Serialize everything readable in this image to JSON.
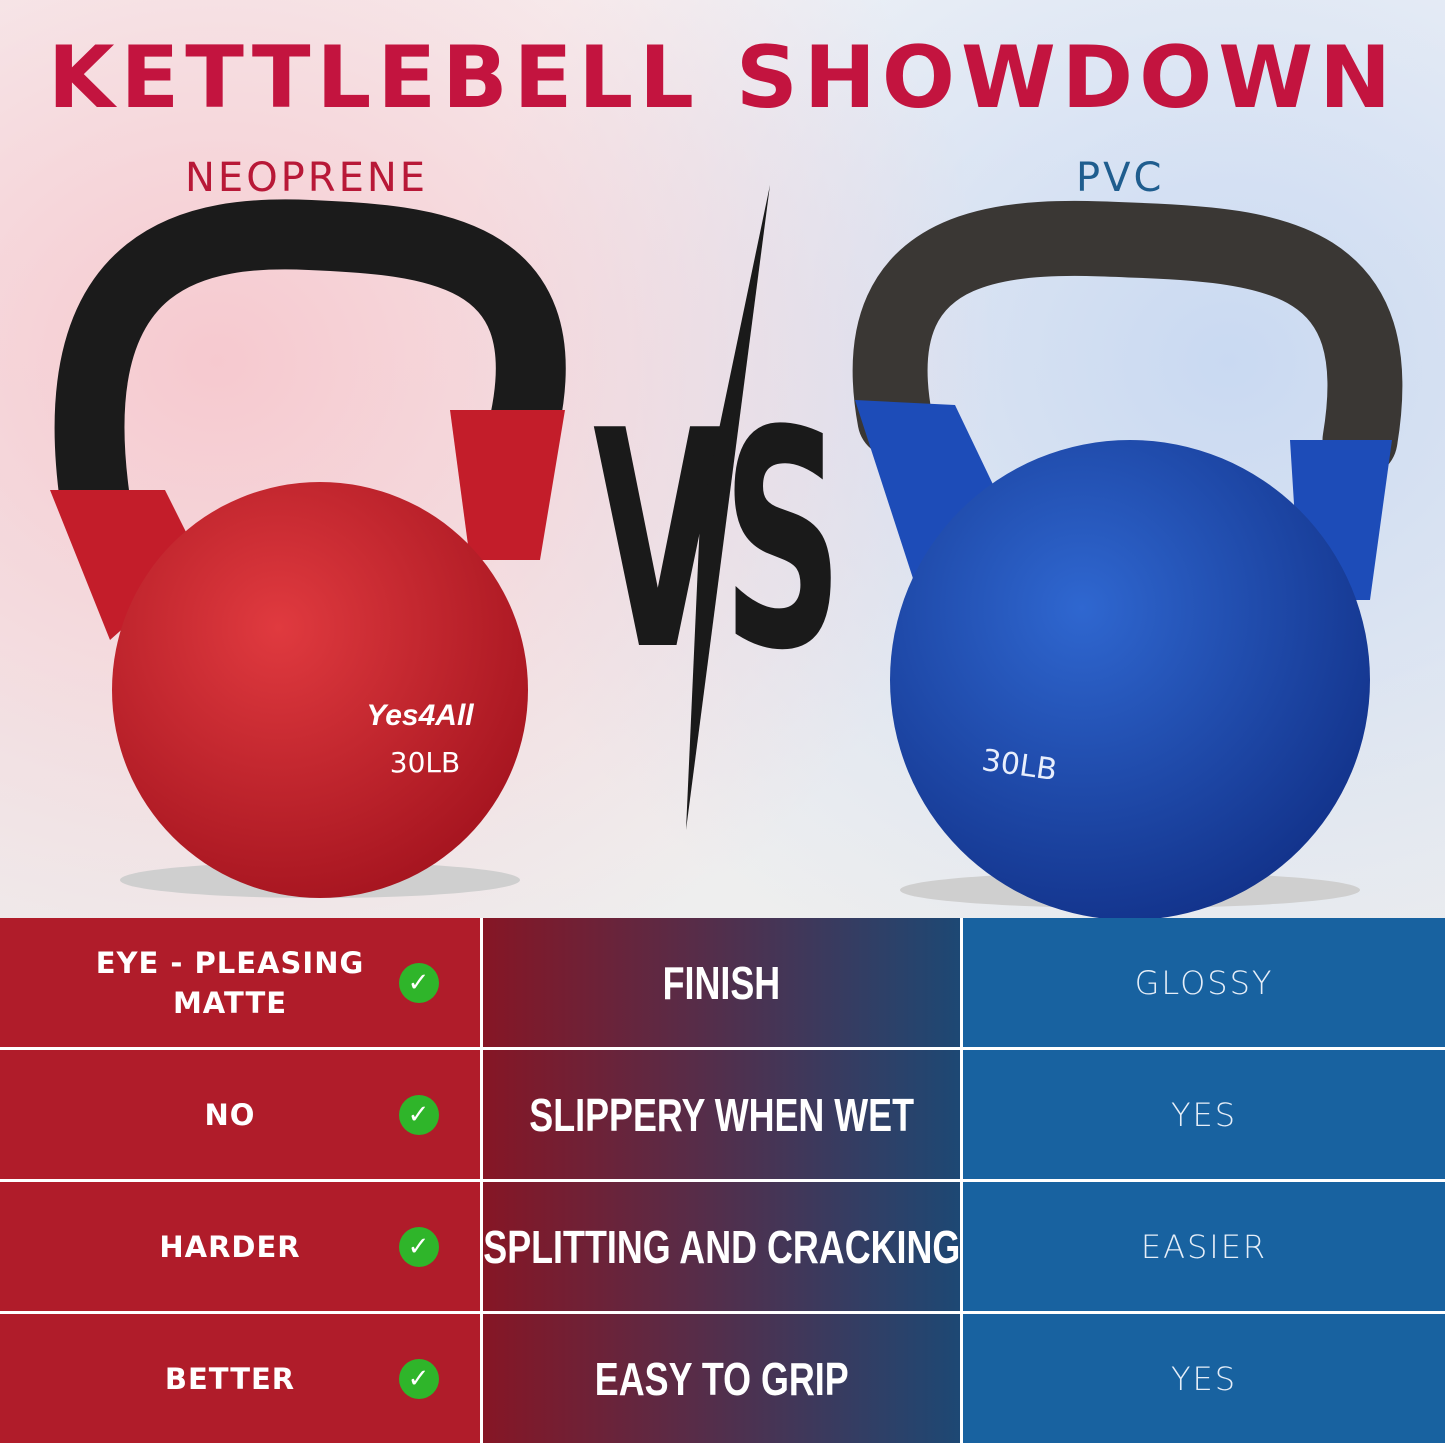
{
  "title": "KETTLEBELL SHOWDOWN",
  "left_label": "NEOPRENE",
  "right_label": "PVC",
  "vs_text": "VS",
  "left_product": {
    "brand": "Yes4All",
    "weight": "30LB",
    "color": "#c8202c"
  },
  "right_product": {
    "weight": "30LB",
    "color": "#1a49b0"
  },
  "colors": {
    "title": "#c3143f",
    "left": "#b01c2a",
    "right": "#1862a0",
    "check": "#2fb52a"
  },
  "rows": [
    {
      "neoprene": "EYE - PLEASING MATTE",
      "feature": "FINISH",
      "pvc": "GLOSSY",
      "icon": "check-circle-icon"
    },
    {
      "neoprene": "NO",
      "feature": "SLIPPERY WHEN WET",
      "pvc": "YES",
      "icon": "check-circle-icon"
    },
    {
      "neoprene": "HARDER",
      "feature": "SPLITTING AND CRACKING",
      "pvc": "EASIER",
      "icon": "check-circle-icon"
    },
    {
      "neoprene": "BETTER",
      "feature": "EASY TO GRIP",
      "pvc": "YES",
      "icon": "check-circle-icon"
    }
  ]
}
